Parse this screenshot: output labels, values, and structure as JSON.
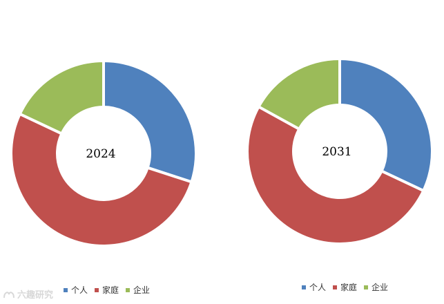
{
  "chart_data": [
    {
      "type": "pie",
      "donut": true,
      "center_label": "2024",
      "categories": [
        "个人",
        "家庭",
        "企业"
      ],
      "values": [
        30,
        52,
        18
      ],
      "colors": [
        "#4f81bd",
        "#c0504d",
        "#9bbb59"
      ],
      "legend": "bottom"
    },
    {
      "type": "pie",
      "donut": true,
      "center_label": "2031",
      "categories": [
        "个人",
        "家庭",
        "企业"
      ],
      "values": [
        32,
        51,
        17
      ],
      "colors": [
        "#4f81bd",
        "#c0504d",
        "#9bbb59"
      ],
      "legend": "bottom"
    }
  ],
  "legend": {
    "items": [
      {
        "label": "个人",
        "color": "#4f81bd"
      },
      {
        "label": "家庭",
        "color": "#c0504d"
      },
      {
        "label": "企业",
        "color": "#9bbb59"
      }
    ]
  },
  "watermark": {
    "text": "六趣研究"
  }
}
